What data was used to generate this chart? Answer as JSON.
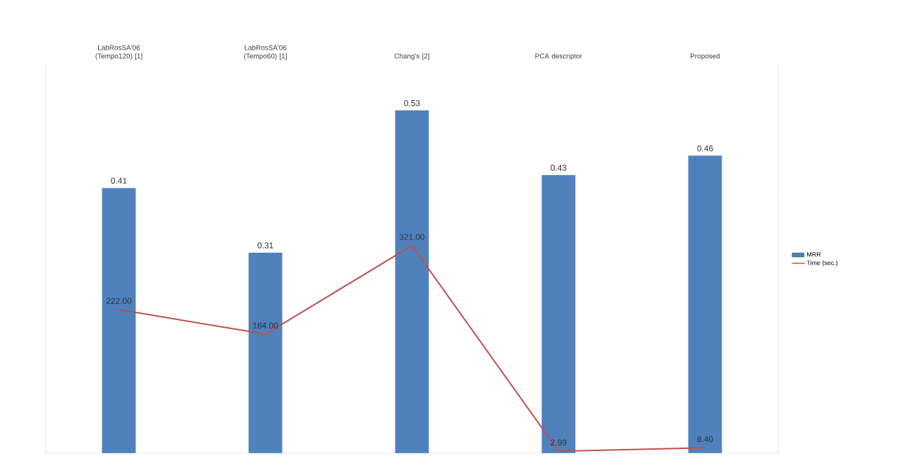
{
  "chart_data": {
    "type": "bar",
    "categories": [
      "LabRosSA'06 (Tempo120) [1]",
      "LabRosSA'06  (Tempo60) [1]",
      "Chang's [2]",
      "PCA descriptor",
      "Proposed"
    ],
    "series": [
      {
        "name": "MRR",
        "color": "#4f81bd",
        "values": [
          0.41,
          0.31,
          0.53,
          0.43,
          0.46
        ],
        "value_labels": [
          "0.41",
          "0.31",
          "0.53",
          "0.43",
          "0.46"
        ]
      },
      {
        "name": "Time (sec.)",
        "type": "line",
        "axis": "y2",
        "color": "#c0504d",
        "values": [
          222,
          184,
          321,
          2.99,
          8.4
        ],
        "value_labels": [
          "222.00",
          "184.00",
          "321.00",
          "2.99",
          "8.40"
        ]
      }
    ],
    "ylim": [
      0,
      0.6
    ],
    "yticks": [
      {
        "value": 0,
        "label": null
      },
      {
        "value": 0.1,
        "label": null
      },
      {
        "value": 0.2,
        "label": null
      },
      {
        "value": 0.3,
        "label": null
      },
      {
        "value": 0.4,
        "label": null
      },
      {
        "value": 0.5,
        "label": null
      },
      {
        "value": 0.6,
        "label": null
      }
    ],
    "y2lim": [
      0,
      600
    ],
    "y2ticks": [
      {
        "value": 0,
        "label": null
      },
      {
        "value": 100,
        "label": null
      },
      {
        "value": 200,
        "label": null
      },
      {
        "value": 300,
        "label": null
      },
      {
        "value": 400,
        "label": null
      },
      {
        "value": 500,
        "label": null
      },
      {
        "value": 600,
        "label": null
      }
    ],
    "tick_labels": "x",
    "legend": "right",
    "marker": "none",
    "line_style": "solid"
  }
}
